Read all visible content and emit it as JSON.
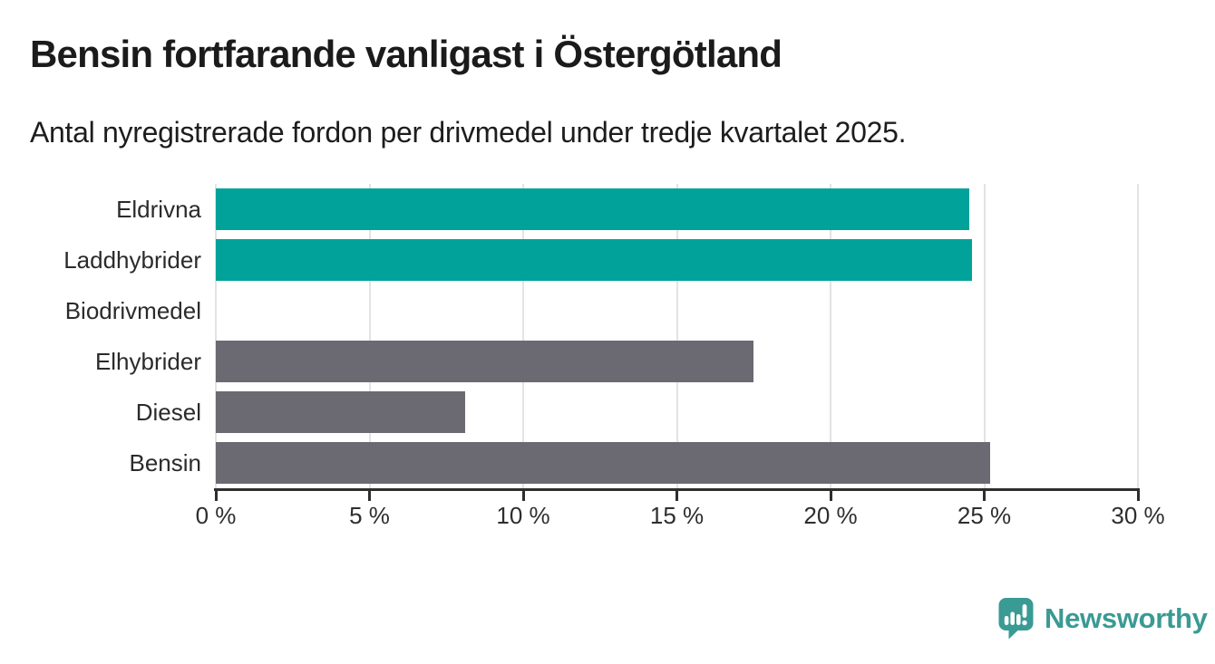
{
  "header": {
    "title": "Bensin fortfarande vanligast i Östergötland",
    "subtitle": "Antal nyregistrerade fordon per drivmedel under tredje kvartalet 2025."
  },
  "chart_data": {
    "type": "bar",
    "orientation": "horizontal",
    "title": "Bensin fortfarande vanligast i Östergötland",
    "subtitle": "Antal nyregistrerade fordon per drivmedel under tredje kvartalet 2025.",
    "categories": [
      "Eldrivna",
      "Laddhybrider",
      "Biodrivmedel",
      "Elhybrider",
      "Diesel",
      "Bensin"
    ],
    "values": [
      24.5,
      24.6,
      0,
      17.5,
      8.1,
      25.2
    ],
    "bar_colors": [
      "#00a299",
      "#00a299",
      "#00a299",
      "#6b6a72",
      "#6b6a72",
      "#6b6a72"
    ],
    "xlim": [
      0,
      30
    ],
    "x_ticks": [
      0,
      5,
      10,
      15,
      20,
      25,
      30
    ],
    "x_tick_labels": [
      "0 %",
      "5 %",
      "10 %",
      "15 %",
      "20 %",
      "25 %",
      "30 %"
    ],
    "xlabel": "",
    "ylabel": "",
    "grid": true,
    "legend": false
  },
  "branding": {
    "logo_text": "Newsworthy",
    "logo_icon": "newsworthy-speech-bubble-chart-icon",
    "logo_color": "#3a9a94"
  },
  "colors": {
    "highlight_teal": "#00a299",
    "neutral_gray": "#6b6a72",
    "gridline": "#e3e3e5",
    "axis": "#2e2e2e",
    "text": "#1d1d1d",
    "background": "#ffffff"
  }
}
